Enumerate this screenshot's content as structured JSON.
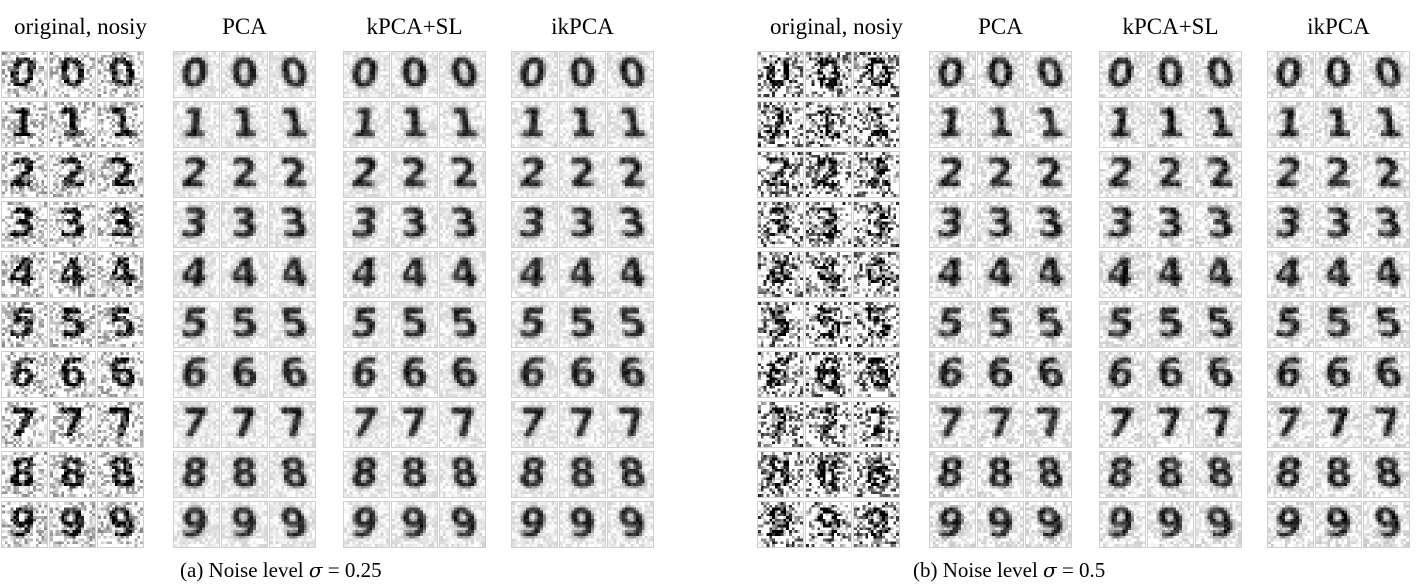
{
  "panels": [
    {
      "id": "a",
      "caption_prefix": "(a) Noise level ",
      "caption_symbol": "σ",
      "caption_suffix": " = 0.25",
      "noise_level": 0.25,
      "column_headers": [
        "original, nosiy",
        "PCA",
        "kPCA+SL",
        "ikPCA"
      ]
    },
    {
      "id": "b",
      "caption_prefix": "(b) Noise level ",
      "caption_symbol": "σ",
      "caption_suffix": " = 0.5",
      "noise_level": 0.5,
      "column_headers": [
        "original, nosiy",
        "PCA",
        "kPCA+SL",
        "ikPCA"
      ]
    }
  ],
  "digits": [
    "0",
    "1",
    "2",
    "3",
    "4",
    "5",
    "6",
    "7",
    "8",
    "9"
  ],
  "samples_per_digit": 3
}
